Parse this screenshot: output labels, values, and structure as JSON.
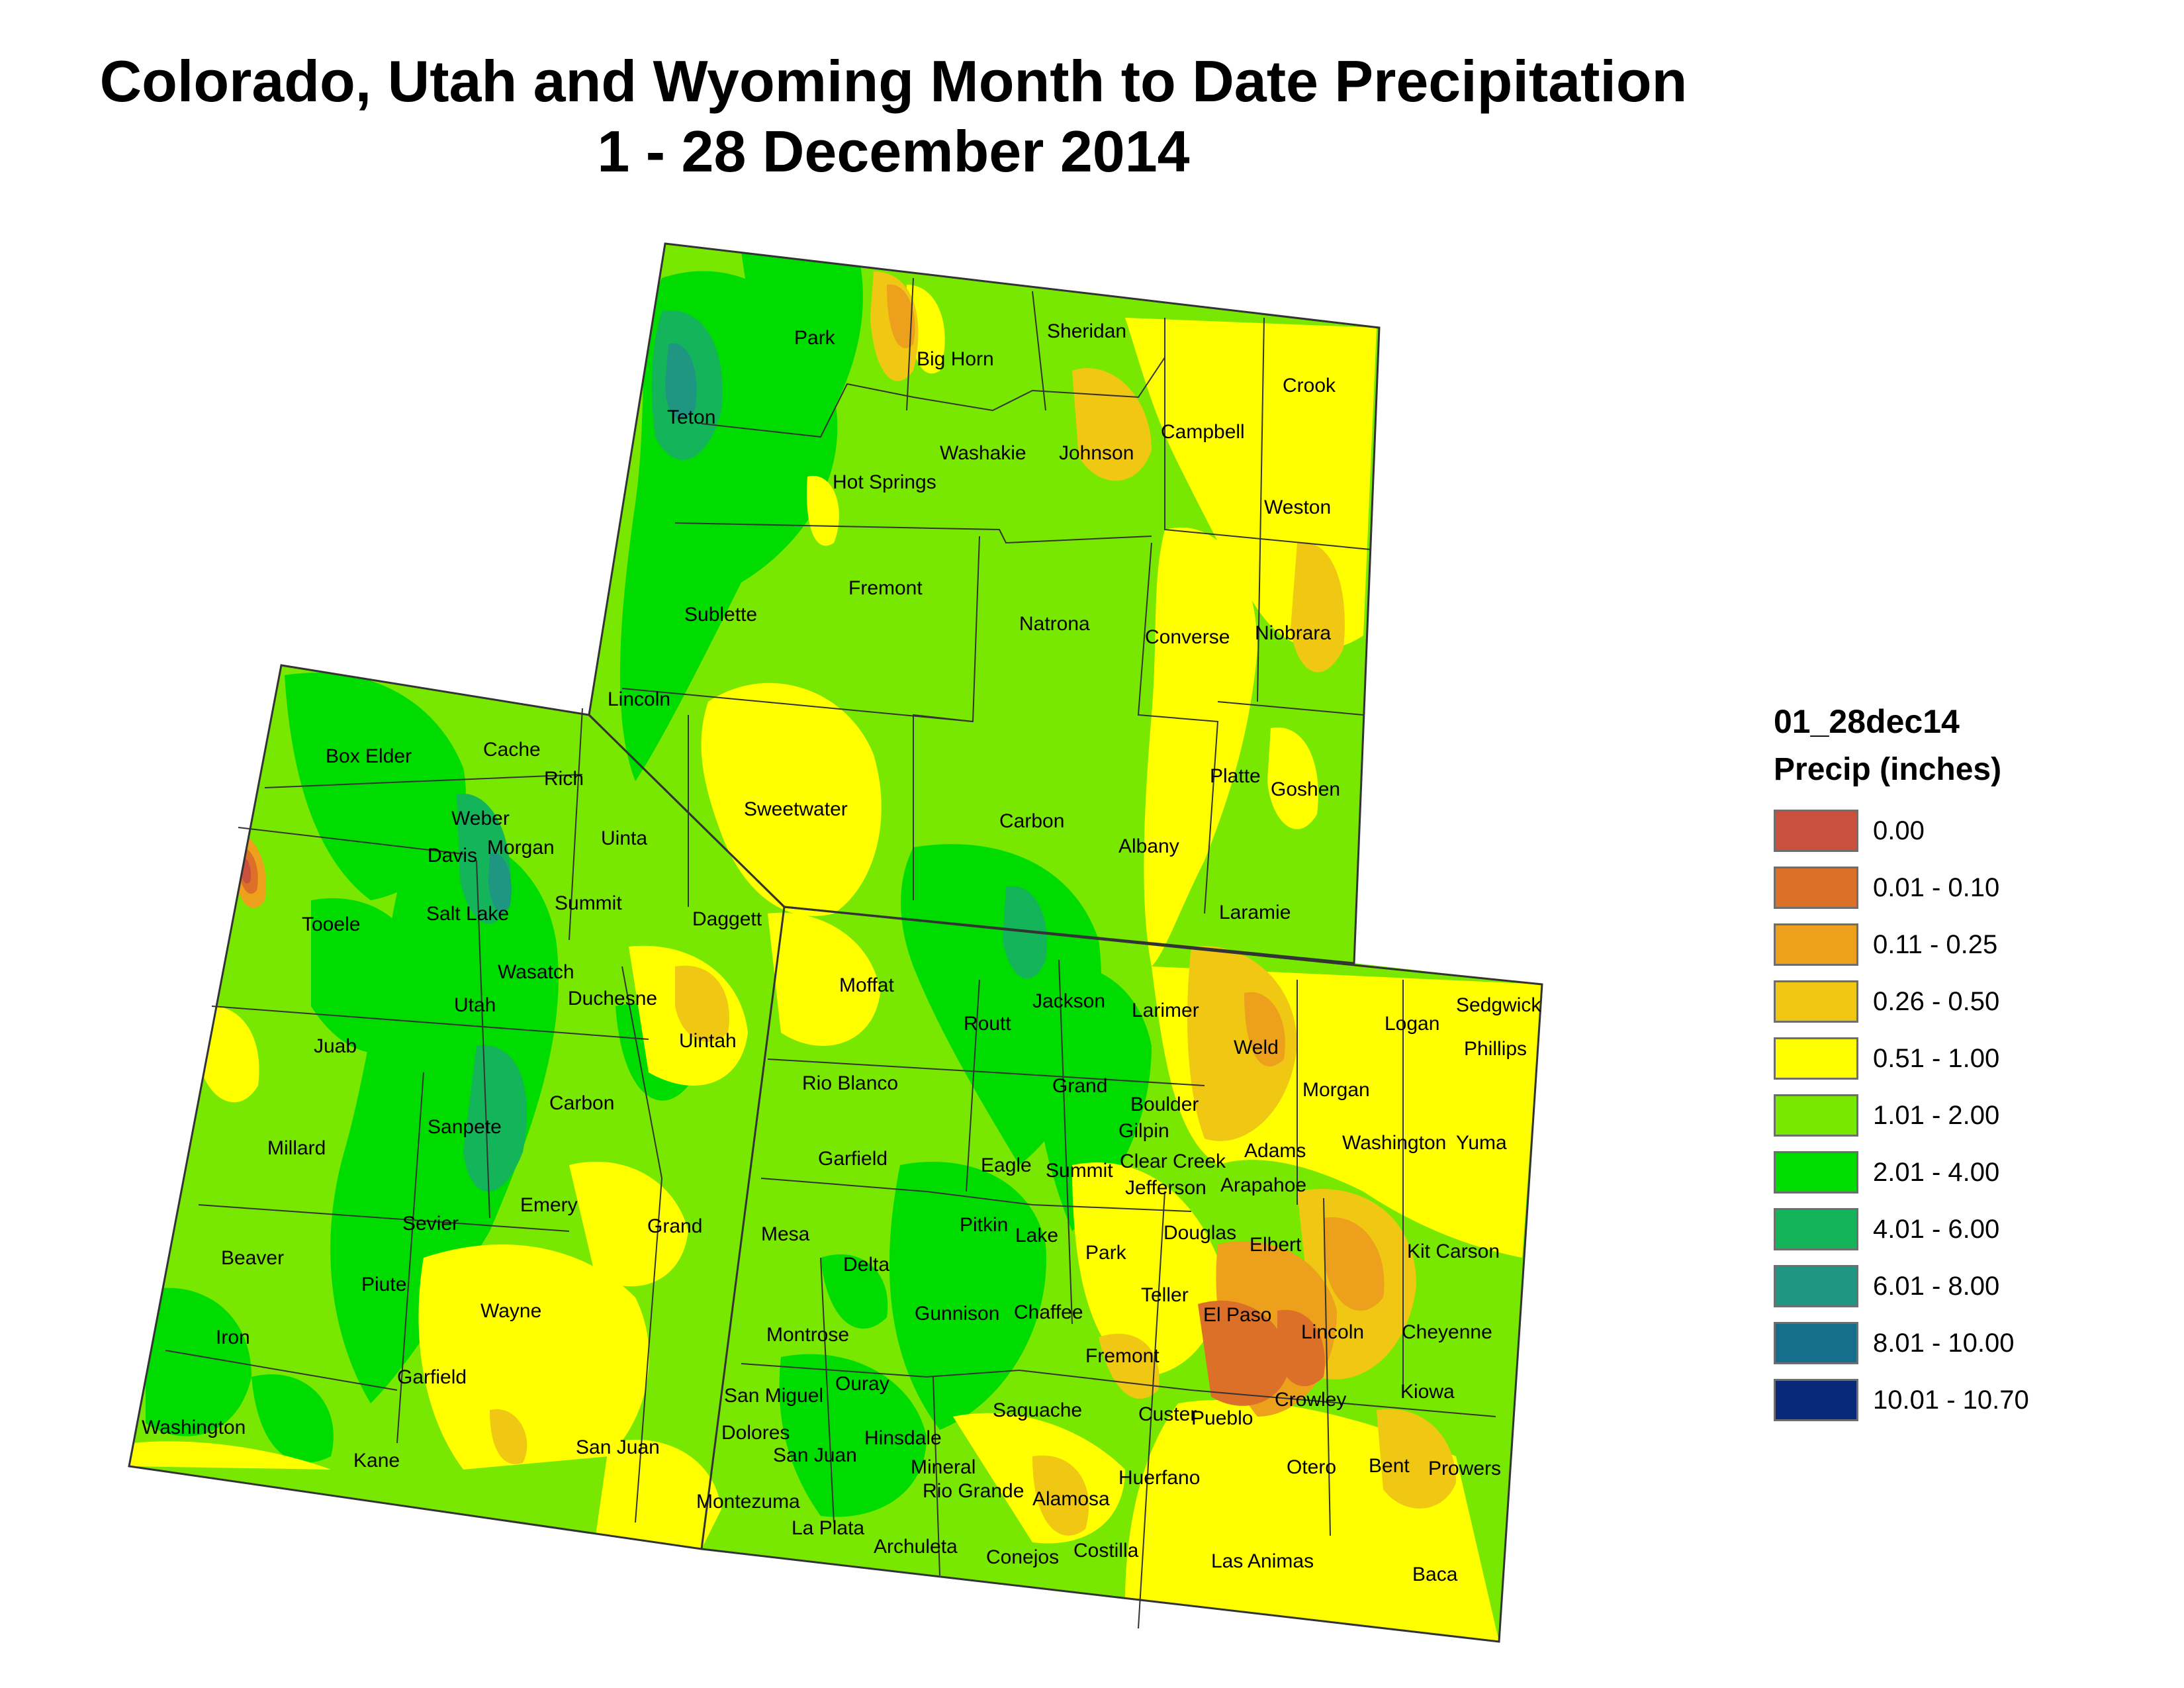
{
  "title": {
    "line1": "Colorado, Utah and Wyoming Month to Date Precipitation",
    "line2": "1 - 28 December 2014"
  },
  "legend": {
    "layer_name": "01_28dec14",
    "subtitle": "Precip (inches)",
    "classes": [
      {
        "label": "0.00",
        "color": "#c8503c"
      },
      {
        "label": "0.01 - 0.10",
        "color": "#dc7028"
      },
      {
        "label": "0.11 - 0.25",
        "color": "#eca01c"
      },
      {
        "label": "0.26 - 0.50",
        "color": "#f0c814"
      },
      {
        "label": "0.51 - 1.00",
        "color": "#ffff00"
      },
      {
        "label": "1.01 - 2.00",
        "color": "#78e800"
      },
      {
        "label": "2.01 - 4.00",
        "color": "#00dc00"
      },
      {
        "label": "4.01 - 6.00",
        "color": "#14b45a"
      },
      {
        "label": "6.01 - 8.00",
        "color": "#1e9682"
      },
      {
        "label": "8.01 - 10.00",
        "color": "#146e8c"
      },
      {
        "label": "10.01 - 10.70",
        "color": "#0a2878"
      }
    ]
  },
  "states": {
    "wyoming": {
      "counties": [
        "Park",
        "Big Horn",
        "Sheridan",
        "Crook",
        "Teton",
        "Campbell",
        "Washakie",
        "Johnson",
        "Hot Springs",
        "Weston",
        "Fremont",
        "Sublette",
        "Natrona",
        "Converse",
        "Niobrara",
        "Lincoln",
        "Sweetwater",
        "Carbon",
        "Albany",
        "Platte",
        "Goshen",
        "Uinta",
        "Laramie"
      ]
    },
    "utah": {
      "counties": [
        "Box Elder",
        "Cache",
        "Rich",
        "Weber",
        "Davis",
        "Morgan",
        "Tooele",
        "Salt Lake",
        "Summit",
        "Daggett",
        "Wasatch",
        "Utah",
        "Duchesne",
        "Uintah",
        "Juab",
        "Carbon",
        "Sanpete",
        "Millard",
        "Emery",
        "Sevier",
        "Grand",
        "Beaver",
        "Piute",
        "Wayne",
        "Iron",
        "Garfield",
        "Washington",
        "Kane",
        "San Juan"
      ]
    },
    "colorado": {
      "counties": [
        "Moffat",
        "Routt",
        "Jackson",
        "Larimer",
        "Sedgwick",
        "Logan",
        "Phillips",
        "Weld",
        "Rio Blanco",
        "Grand",
        "Boulder",
        "Morgan",
        "Gilpin",
        "Washington",
        "Yuma",
        "Garfield",
        "Eagle",
        "Summit",
        "Clear Creek",
        "Adams",
        "Jefferson",
        "Arapahoe",
        "Mesa",
        "Pitkin",
        "Lake",
        "Douglas",
        "Elbert",
        "Kit Carson",
        "Delta",
        "Park",
        "Teller",
        "El Paso",
        "Montrose",
        "Gunnison",
        "Chaffee",
        "Lincoln",
        "Cheyenne",
        "Fremont",
        "San Miguel",
        "Ouray",
        "Custer",
        "Crowley",
        "Kiowa",
        "Dolores",
        "Hinsdale",
        "Saguache",
        "Pueblo",
        "San Juan",
        "Mineral",
        "Otero",
        "Bent",
        "Prowers",
        "Huerfano",
        "Montezuma",
        "Rio Grande",
        "Alamosa",
        "La Plata",
        "Archuleta",
        "Conejos",
        "Costilla",
        "Las Animas",
        "Baca"
      ]
    }
  }
}
